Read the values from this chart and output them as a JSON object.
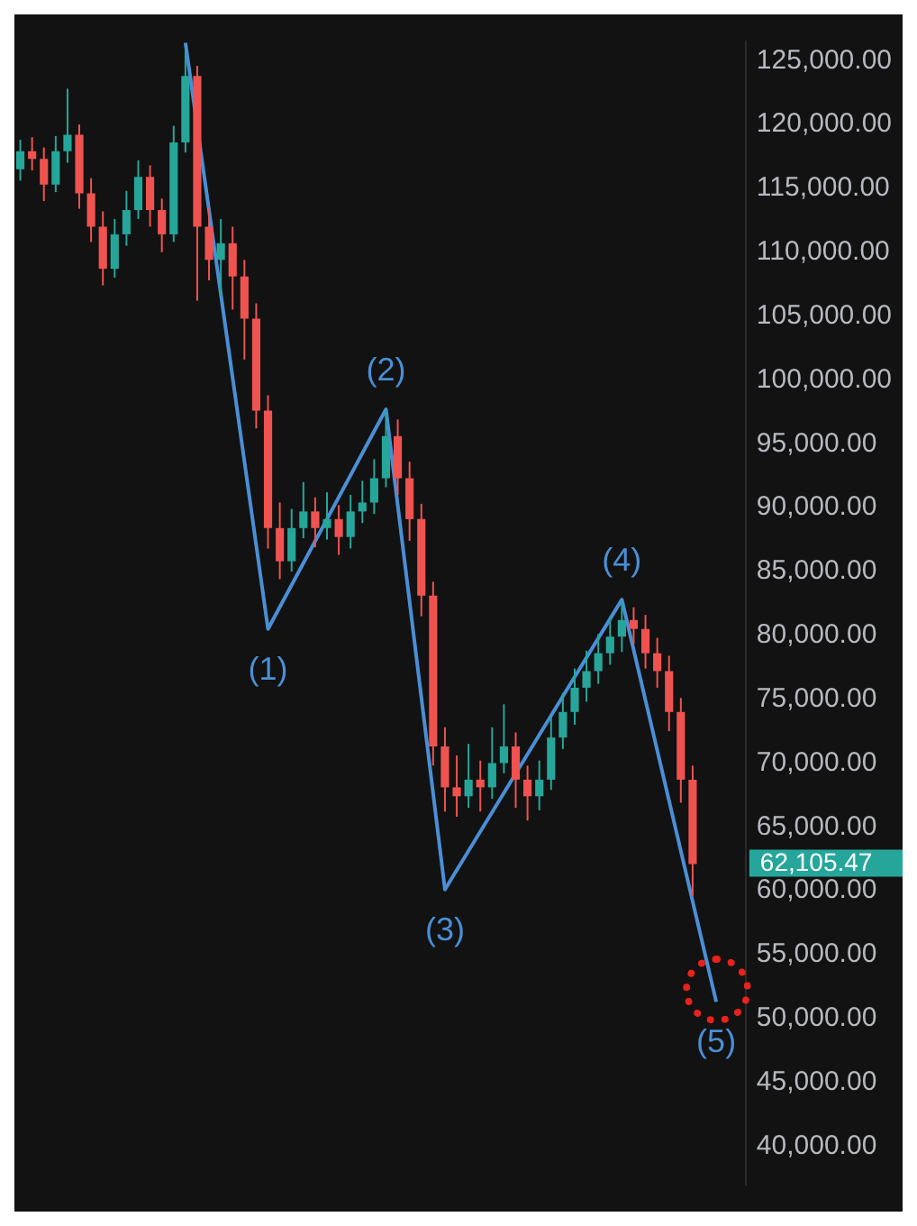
{
  "chart_data": {
    "type": "candlestick",
    "categories": [
      null,
      null,
      null,
      null,
      null,
      null,
      null,
      null,
      null,
      null,
      null,
      null,
      null,
      null,
      null,
      null,
      null,
      null,
      null,
      null,
      null,
      null,
      null,
      null,
      null,
      null,
      null,
      null,
      null,
      null,
      null,
      null,
      null,
      null,
      null,
      null,
      null,
      null,
      null,
      null,
      null,
      null,
      null,
      null,
      null,
      null,
      null,
      null,
      null,
      null,
      null,
      null,
      null,
      null,
      null,
      null,
      null,
      null,
      null,
      null,
      null,
      null
    ],
    "ohlc": [
      [
        116500,
        118800,
        115600,
        117900
      ],
      [
        117900,
        119000,
        116400,
        117300
      ],
      [
        117300,
        118200,
        114000,
        115300
      ],
      [
        115300,
        119100,
        114700,
        117900
      ],
      [
        117900,
        122800,
        117000,
        119200
      ],
      [
        119200,
        120000,
        113400,
        114600
      ],
      [
        114600,
        115800,
        110800,
        112000
      ],
      [
        112000,
        113200,
        107400,
        108700
      ],
      [
        108700,
        112600,
        108000,
        111400
      ],
      [
        111400,
        114800,
        110500,
        113300
      ],
      [
        113300,
        117200,
        112600,
        115900
      ],
      [
        115900,
        116800,
        112000,
        113300
      ],
      [
        113300,
        114200,
        110000,
        111400
      ],
      [
        111400,
        119900,
        110800,
        118600
      ],
      [
        118600,
        125800,
        117800,
        123800
      ],
      [
        123800,
        124600,
        106200,
        112000
      ],
      [
        112000,
        113500,
        107800,
        109400
      ],
      [
        109400,
        112600,
        106600,
        110700
      ],
      [
        110700,
        112000,
        105500,
        108100
      ],
      [
        108100,
        109400,
        101600,
        104800
      ],
      [
        104800,
        106000,
        96200,
        97600
      ],
      [
        97600,
        98800,
        86800,
        88400
      ],
      [
        88400,
        90400,
        84400,
        85800
      ],
      [
        85800,
        89900,
        85000,
        88400
      ],
      [
        88400,
        92000,
        87600,
        89700
      ],
      [
        89700,
        90800,
        86900,
        88400
      ],
      [
        88400,
        91200,
        87500,
        89100
      ],
      [
        89100,
        90200,
        86300,
        87700
      ],
      [
        87700,
        91000,
        86800,
        89700
      ],
      [
        89700,
        92100,
        88800,
        90400
      ],
      [
        90400,
        93800,
        89500,
        92300
      ],
      [
        92300,
        97600,
        91600,
        95600
      ],
      [
        95600,
        96900,
        91000,
        92300
      ],
      [
        92300,
        93600,
        87400,
        89100
      ],
      [
        89100,
        90300,
        81500,
        83100
      ],
      [
        83100,
        84200,
        69800,
        71300
      ],
      [
        71300,
        72800,
        66200,
        68100
      ],
      [
        68100,
        70600,
        65800,
        67400
      ],
      [
        67400,
        71500,
        66500,
        68700
      ],
      [
        68700,
        70200,
        66200,
        68100
      ],
      [
        68100,
        72800,
        67200,
        70000
      ],
      [
        70000,
        74600,
        69200,
        71300
      ],
      [
        71300,
        72400,
        66500,
        68700
      ],
      [
        68700,
        69800,
        65500,
        67400
      ],
      [
        67400,
        70200,
        66300,
        68700
      ],
      [
        68700,
        73600,
        67900,
        72000
      ],
      [
        72000,
        75500,
        71100,
        74000
      ],
      [
        74000,
        77400,
        73000,
        75900
      ],
      [
        75900,
        78800,
        74800,
        77200
      ],
      [
        77200,
        80100,
        76200,
        78600
      ],
      [
        78600,
        81500,
        77700,
        79900
      ],
      [
        79900,
        82600,
        78700,
        81200
      ],
      [
        81200,
        82200,
        79300,
        80500
      ],
      [
        80500,
        81600,
        77400,
        78600
      ],
      [
        78600,
        79800,
        75900,
        77200
      ],
      [
        77200,
        78400,
        72500,
        74000
      ],
      [
        74000,
        75100,
        66900,
        68700
      ],
      [
        68700,
        69800,
        59600,
        62100
      ],
      null,
      null,
      null,
      null
    ],
    "colors": [
      "#26a69a",
      "#ef5350",
      "#ef5350",
      "#26a69a",
      "#26a69a",
      "#ef5350",
      "#ef5350",
      "#ef5350",
      "#26a69a",
      "#26a69a",
      "#26a69a",
      "#ef5350",
      "#ef5350",
      "#26a69a",
      "#26a69a",
      "#ef5350",
      "#ef5350",
      "#26a69a",
      "#ef5350",
      "#ef5350",
      "#ef5350",
      "#ef5350",
      "#ef5350",
      "#26a69a",
      "#26a69a",
      "#ef5350",
      "#26a69a",
      "#ef5350",
      "#26a69a",
      "#26a69a",
      "#26a69a",
      "#26a69a",
      "#ef5350",
      "#ef5350",
      "#ef5350",
      "#ef5350",
      "#ef5350",
      "#ef5350",
      "#26a69a",
      "#ef5350",
      "#26a69a",
      "#26a69a",
      "#ef5350",
      "#ef5350",
      "#26a69a",
      "#26a69a",
      "#26a69a",
      "#26a69a",
      "#26a69a",
      "#26a69a",
      "#26a69a",
      "#26a69a",
      "#ef5350",
      "#ef5350",
      "#ef5350",
      "#ef5350",
      "#ef5350",
      "#ef5350",
      null,
      null,
      null,
      null
    ],
    "series": [
      {
        "type": "line",
        "color": "#4a8fd6",
        "values": [
          null,
          null,
          null,
          null,
          null,
          null,
          null,
          null,
          null,
          null,
          null,
          null,
          null,
          null,
          126400,
          null,
          null,
          null,
          null,
          null,
          null,
          80500,
          null,
          null,
          null,
          null,
          null,
          null,
          null,
          null,
          null,
          97700,
          null,
          null,
          null,
          null,
          60100,
          null,
          null,
          null,
          null,
          null,
          null,
          null,
          null,
          null,
          null,
          null,
          null,
          null,
          null,
          82800,
          null,
          null,
          null,
          null,
          null,
          null,
          null,
          51300,
          null,
          null
        ]
      }
    ],
    "annotations": [
      "(1)",
      "(2)",
      "(3)",
      "(4)",
      "(5)",
      "62,105.47"
    ],
    "ylim": [
      37000,
      126500
    ],
    "yticks": [
      {
        "value": 40000,
        "label": "40,000.00"
      },
      {
        "value": 45000,
        "label": "45,000.00"
      },
      {
        "value": 50000,
        "label": "50,000.00"
      },
      {
        "value": 55000,
        "label": "55,000.00"
      },
      {
        "value": 60000,
        "label": "60,000.00"
      },
      {
        "value": 65000,
        "label": "65,000.00"
      },
      {
        "value": 70000,
        "label": "70,000.00"
      },
      {
        "value": 75000,
        "label": "75,000.00"
      },
      {
        "value": 80000,
        "label": "80,000.00"
      },
      {
        "value": 85000,
        "label": "85,000.00"
      },
      {
        "value": 90000,
        "label": "90,000.00"
      },
      {
        "value": 95000,
        "label": "95,000.00"
      },
      {
        "value": 100000,
        "label": "100,000.00"
      },
      {
        "value": 105000,
        "label": "105,000.00"
      },
      {
        "value": 110000,
        "label": "110,000.00"
      },
      {
        "value": 115000,
        "label": "115,000.00"
      },
      {
        "value": 120000,
        "label": "120,000.00"
      },
      {
        "value": 125000,
        "label": "125,000.00"
      }
    ]
  }
}
